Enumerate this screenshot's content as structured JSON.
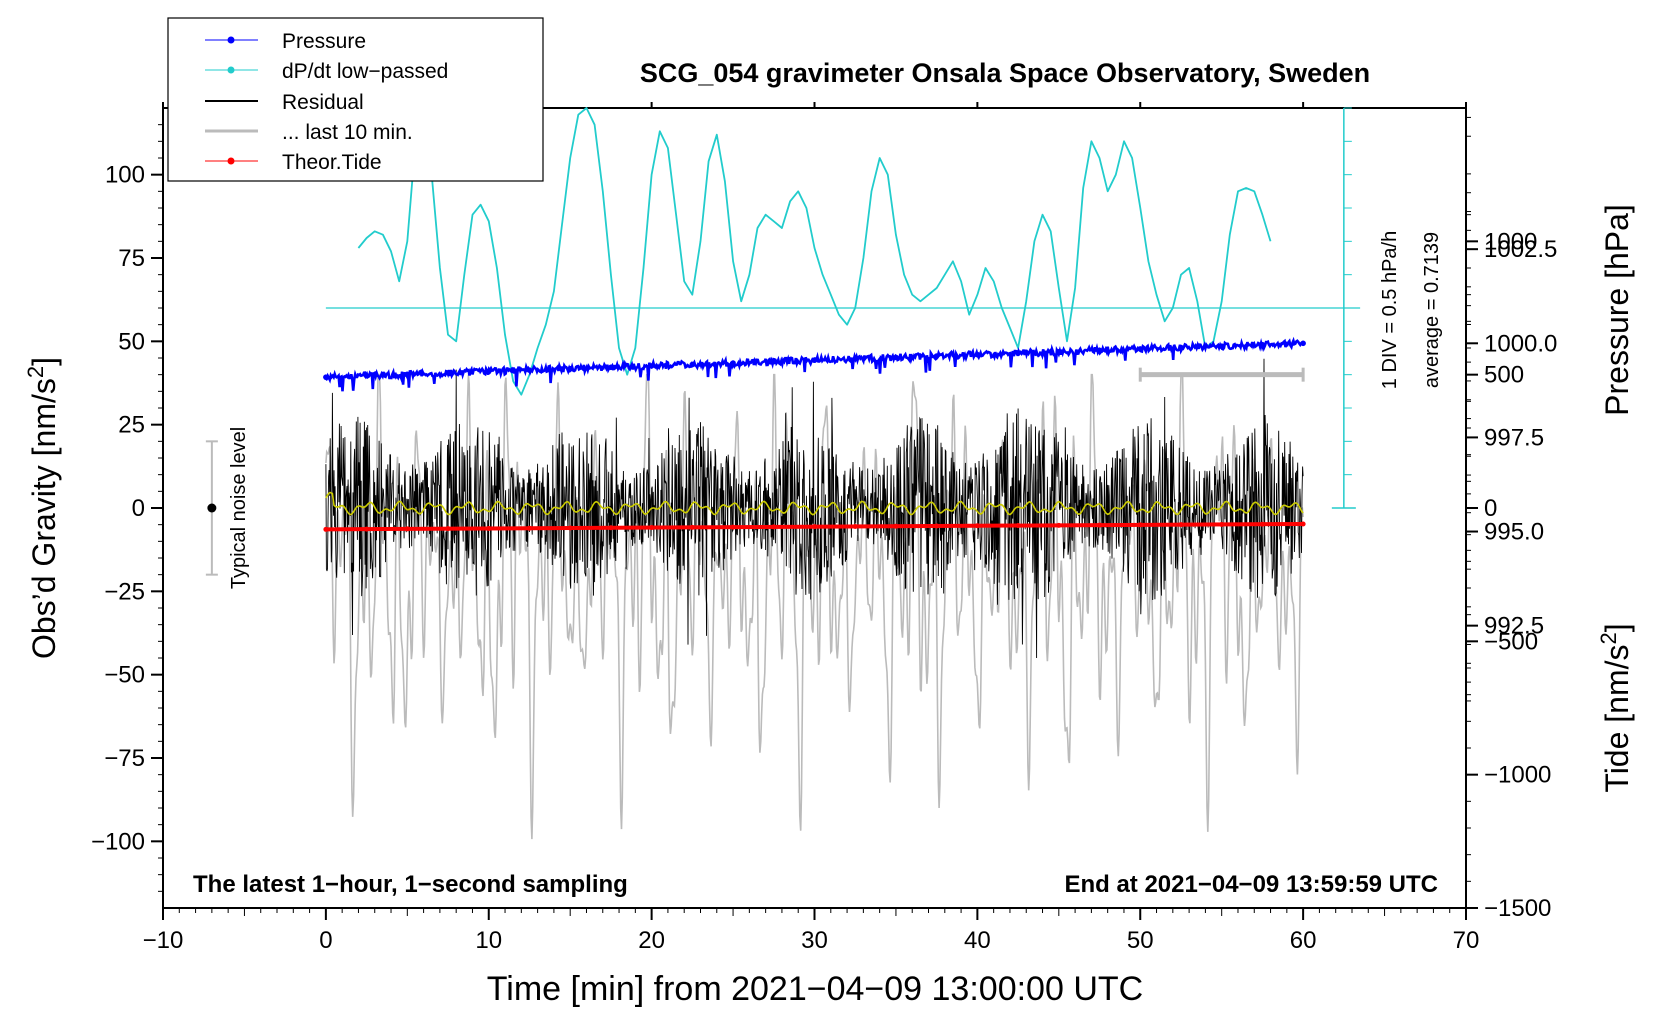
{
  "chart_data": {
    "type": "line",
    "title": "SCG_054 gravimeter Onsala Space Observatory, Sweden",
    "xlabel": "Time [min] from 2021−04−09 13:00:00 UTC",
    "ylabel_left": "Obs’d Gravity [nm/s",
    "ylabel_left_sup": "2",
    "ylabel_left_end": "]",
    "ylabel_right_top": "Pressure [hPa]",
    "ylabel_right_bottom": "Tide [nm/s",
    "ylabel_right_bottom_sup": "2",
    "ylabel_right_bottom_end": "]",
    "xlim": [
      -10,
      70
    ],
    "ylim_gravity": [
      -120,
      120
    ],
    "ylim_pressure": [
      985.0,
      1006.25
    ],
    "ylim_tide": [
      -1500,
      1500
    ],
    "x_ticks": [
      -10,
      0,
      10,
      20,
      30,
      40,
      50,
      60,
      70
    ],
    "x_tick_labels": [
      "−10",
      "0",
      "10",
      "20",
      "30",
      "40",
      "50",
      "60",
      "70"
    ],
    "gravity_ticks": [
      -100,
      -75,
      -50,
      -25,
      0,
      25,
      50,
      75,
      100
    ],
    "gravity_tick_labels": [
      "−100",
      "−75",
      "−50",
      "−25",
      "0",
      "25",
      "50",
      "75",
      "100"
    ],
    "pressure_ticks": [
      992.5,
      995.0,
      997.5,
      1000.0,
      1002.5
    ],
    "pressure_tick_labels": [
      "992.5",
      "995.0",
      "997.5",
      "1000.0",
      "1002.5"
    ],
    "tide_ticks": [
      -1500,
      -1000,
      -500,
      0,
      500,
      1000
    ],
    "tide_tick_labels": [
      "−1500",
      "−1000",
      "−500",
      "0",
      "500",
      "1000"
    ],
    "legend": [
      {
        "label": "Pressure",
        "color": "#0000ff",
        "marker": true
      },
      {
        "label": "dP/dt low−passed",
        "color": "#22cccc",
        "marker": true
      },
      {
        "label": "Residual",
        "color": "#000000",
        "marker": false
      },
      {
        "label": "... last 10 min.",
        "color": "#bbbbbb",
        "marker": false
      },
      {
        "label": "Theor.Tide",
        "color": "#ff0000",
        "marker": true
      }
    ],
    "annotations": {
      "bottom_left": "The latest 1−hour, 1−second sampling",
      "bottom_right": "End at 2021−04−09 13:59:59 UTC",
      "noise_label": "Typical noise level",
      "dpdt_scale": "1 DIV = 0.5 hPa/h",
      "dpdt_average": "average = 0.7139"
    },
    "noise_bar": {
      "x": -7,
      "center": 0,
      "low": -20,
      "high": 20
    },
    "pressure_series": {
      "name": "Pressure",
      "x": [
        0,
        60
      ],
      "values": [
        999.1,
        1000.0
      ]
    },
    "tide_series": {
      "name": "Theor.Tide",
      "x": [
        0,
        60
      ],
      "values": [
        -80,
        -60
      ]
    },
    "dpdt_series": {
      "name": "dP/dt low−passed",
      "x": [
        2,
        2.5,
        3,
        3.5,
        4,
        4.5,
        5,
        5.5,
        6,
        6.5,
        7,
        7.5,
        8,
        8.5,
        9,
        9.5,
        10,
        10.5,
        11,
        11.5,
        12,
        12.5,
        13,
        13.5,
        14,
        14.5,
        15,
        15.5,
        16,
        16.5,
        17,
        17.5,
        18,
        18.5,
        19,
        19.5,
        20,
        20.5,
        21,
        21.5,
        22,
        22.5,
        23,
        23.5,
        24,
        24.5,
        25,
        25.5,
        26,
        26.5,
        27,
        27.5,
        28,
        28.5,
        29,
        29.5,
        30,
        30.5,
        31,
        31.5,
        32,
        32.5,
        33,
        33.5,
        34,
        34.5,
        35,
        35.5,
        36,
        36.5,
        37,
        37.5,
        38,
        38.5,
        39,
        39.5,
        40,
        40.5,
        41,
        41.5,
        42,
        42.5,
        43,
        43.5,
        44,
        44.5,
        45,
        45.5,
        46,
        46.5,
        47,
        47.5,
        48,
        48.5,
        49,
        49.5,
        50,
        50.5,
        51,
        51.5,
        52,
        52.5,
        53,
        53.5,
        54,
        54.5,
        55,
        55.5,
        56,
        56.5,
        57,
        57.5,
        58
      ],
      "values_gravity_units": [
        78,
        81,
        83,
        82,
        77,
        68,
        80,
        110,
        118,
        100,
        72,
        52,
        50,
        70,
        88,
        91,
        86,
        72,
        52,
        38,
        34,
        40,
        48,
        55,
        65,
        85,
        105,
        118,
        120,
        115,
        95,
        70,
        48,
        40,
        48,
        72,
        100,
        113,
        108,
        88,
        68,
        64,
        80,
        104,
        112,
        98,
        74,
        62,
        70,
        84,
        88,
        86,
        84,
        92,
        95,
        90,
        78,
        70,
        64,
        58,
        55,
        60,
        75,
        95,
        105,
        100,
        82,
        70,
        64,
        62,
        64,
        66,
        70,
        74,
        68,
        58,
        64,
        72,
        68,
        60,
        54,
        48,
        62,
        80,
        88,
        83,
        66,
        50,
        66,
        96,
        110,
        105,
        95,
        100,
        110,
        105,
        90,
        74,
        64,
        56,
        60,
        70,
        72,
        62,
        48,
        50,
        62,
        82,
        95,
        96,
        95,
        88,
        80
      ]
    },
    "dpdt_zero_level": 60,
    "residual_ylim": [
      -45,
      50
    ],
    "last10_tide_range": [
      -1250,
      500
    ],
    "last10_bar": {
      "x": [
        50,
        60
      ],
      "tide_value": 500
    }
  }
}
